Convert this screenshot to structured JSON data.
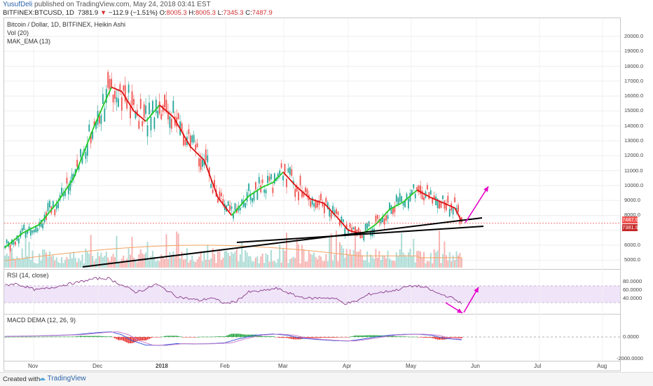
{
  "header": {
    "user": "YusufDeli",
    "published": "published on TradingView.com, May 24, 2018 03:41 EST",
    "symbol": "BITFINEX:BTCUSD, 1D",
    "last": "7381.9",
    "arrow": "▼",
    "change": "−112.9 (−1.51%)",
    "o_label": "O:",
    "o_val": "8005.3",
    "h_label": "H:",
    "h_val": "8005.3",
    "l_label": "L:",
    "l_val": "7345.3",
    "c_label": "C:",
    "c_val": "7487.9"
  },
  "legends": {
    "main_title": "Bitcoin / Dollar, 1D, BITFINEX, Heikin Ashi",
    "vol": "Vol (20)",
    "ema": "MAK_EMA (13)",
    "rsi": "RSI (14, close)",
    "macd": "MACD DEMA (12, 26, 9)"
  },
  "price_boxes": {
    "box1": "7487.9",
    "box2": "7381.9"
  },
  "colors": {
    "up": "#26a69a",
    "down": "#ef5350",
    "ema_up": "#22cc22",
    "ema_down": "#dd1111",
    "vol_ma": "#f4a460",
    "rsi": "#8a3b8a",
    "rsi_band": "#e8d8f5",
    "arrows": "#e600c8",
    "trend": "#000000"
  },
  "footer": {
    "created": "Created with",
    "logo": "TradingView"
  },
  "chart_data": {
    "type": "candlestick",
    "title": "Bitcoin / Dollar, 1D, BITFINEX, Heikin Ashi",
    "price_axis": {
      "ticks": [
        20000,
        19000,
        18000,
        17000,
        16000,
        15000,
        14000,
        13000,
        12000,
        11000,
        10000,
        9000,
        8000,
        7000,
        6000,
        5000
      ],
      "tick_labels": [
        "20000.0",
        "19000.0",
        "18000.0",
        "17000.0",
        "16000.0",
        "15000.0",
        "14000.0",
        "13000.0",
        "12000.0",
        "11000.0",
        "10000.0",
        "9000.0",
        "8000.0",
        "",
        "6000.0",
        "5000.0"
      ],
      "range": [
        4500,
        20700
      ]
    },
    "time_axis": {
      "labels": [
        "Nov",
        "Dec",
        "2018",
        "Feb",
        "Mar",
        "Apr",
        "May",
        "Jun",
        "Jul",
        "Aug"
      ],
      "bold": [
        false,
        false,
        true,
        false,
        false,
        false,
        false,
        false,
        false,
        false
      ]
    },
    "ema_anchors": [
      [
        0,
        5850
      ],
      [
        10,
        6800
      ],
      [
        20,
        7400
      ],
      [
        30,
        8800
      ],
      [
        40,
        10500
      ],
      [
        52,
        14000
      ],
      [
        62,
        16600
      ],
      [
        68,
        16300
      ],
      [
        75,
        15000
      ],
      [
        82,
        14300
      ],
      [
        90,
        15400
      ],
      [
        98,
        14600
      ],
      [
        108,
        12600
      ],
      [
        116,
        11700
      ],
      [
        124,
        9200
      ],
      [
        132,
        8000
      ],
      [
        142,
        9300
      ],
      [
        150,
        9900
      ],
      [
        156,
        10200
      ],
      [
        162,
        10900
      ],
      [
        170,
        9900
      ],
      [
        178,
        9100
      ],
      [
        186,
        8800
      ],
      [
        194,
        7800
      ],
      [
        200,
        7000
      ],
      [
        208,
        6750
      ],
      [
        216,
        7400
      ],
      [
        224,
        8400
      ],
      [
        232,
        8900
      ],
      [
        240,
        9700
      ],
      [
        248,
        9200
      ],
      [
        256,
        8800
      ],
      [
        262,
        8500
      ],
      [
        266,
        7600
      ]
    ],
    "ema_direction": [
      [
        0,
        62,
        "up"
      ],
      [
        62,
        82,
        "down"
      ],
      [
        82,
        90,
        "up"
      ],
      [
        90,
        132,
        "down"
      ],
      [
        132,
        162,
        "up"
      ],
      [
        162,
        208,
        "down"
      ],
      [
        208,
        240,
        "up"
      ],
      [
        240,
        266,
        "down"
      ]
    ],
    "volume_axis": "hidden",
    "last_price": 7487.9,
    "last_close_label": 7381.9,
    "rsi": {
      "ticks": [
        80,
        60,
        40
      ],
      "tick_labels": [
        "80.0000",
        "60.0000",
        "40.0000"
      ],
      "band": [
        30,
        70
      ],
      "anchors": [
        [
          0,
          72
        ],
        [
          6,
          75
        ],
        [
          12,
          68
        ],
        [
          18,
          60
        ],
        [
          26,
          65
        ],
        [
          34,
          72
        ],
        [
          42,
          78
        ],
        [
          52,
          87
        ],
        [
          60,
          88
        ],
        [
          64,
          80
        ],
        [
          70,
          68
        ],
        [
          76,
          55
        ],
        [
          82,
          62
        ],
        [
          88,
          74
        ],
        [
          94,
          60
        ],
        [
          100,
          45
        ],
        [
          106,
          40
        ],
        [
          114,
          35
        ],
        [
          120,
          42
        ],
        [
          128,
          28
        ],
        [
          134,
          32
        ],
        [
          142,
          55
        ],
        [
          150,
          58
        ],
        [
          158,
          64
        ],
        [
          164,
          55
        ],
        [
          170,
          45
        ],
        [
          178,
          40
        ],
        [
          186,
          42
        ],
        [
          192,
          40
        ],
        [
          198,
          28
        ],
        [
          204,
          32
        ],
        [
          212,
          50
        ],
        [
          220,
          55
        ],
        [
          228,
          60
        ],
        [
          234,
          68
        ],
        [
          240,
          70
        ],
        [
          246,
          64
        ],
        [
          252,
          52
        ],
        [
          258,
          45
        ],
        [
          262,
          38
        ],
        [
          266,
          28
        ]
      ]
    },
    "macd": {
      "ticks": [
        0,
        -2000
      ],
      "tick_labels": [
        "0.0000",
        "-2000.0000"
      ],
      "macd_anchors": [
        [
          0,
          80
        ],
        [
          20,
          150
        ],
        [
          40,
          300
        ],
        [
          55,
          620
        ],
        [
          62,
          700
        ],
        [
          68,
          300
        ],
        [
          74,
          -500
        ],
        [
          82,
          -1100
        ],
        [
          90,
          -1150
        ],
        [
          100,
          -900
        ],
        [
          110,
          -950
        ],
        [
          120,
          -900
        ],
        [
          128,
          -800
        ],
        [
          136,
          -250
        ],
        [
          146,
          250
        ],
        [
          156,
          400
        ],
        [
          164,
          250
        ],
        [
          172,
          -150
        ],
        [
          182,
          -350
        ],
        [
          192,
          -500
        ],
        [
          200,
          -550
        ],
        [
          208,
          -300
        ],
        [
          216,
          0
        ],
        [
          224,
          250
        ],
        [
          232,
          350
        ],
        [
          240,
          380
        ],
        [
          248,
          250
        ],
        [
          256,
          -200
        ],
        [
          262,
          -300
        ],
        [
          266,
          -400
        ]
      ]
    }
  }
}
